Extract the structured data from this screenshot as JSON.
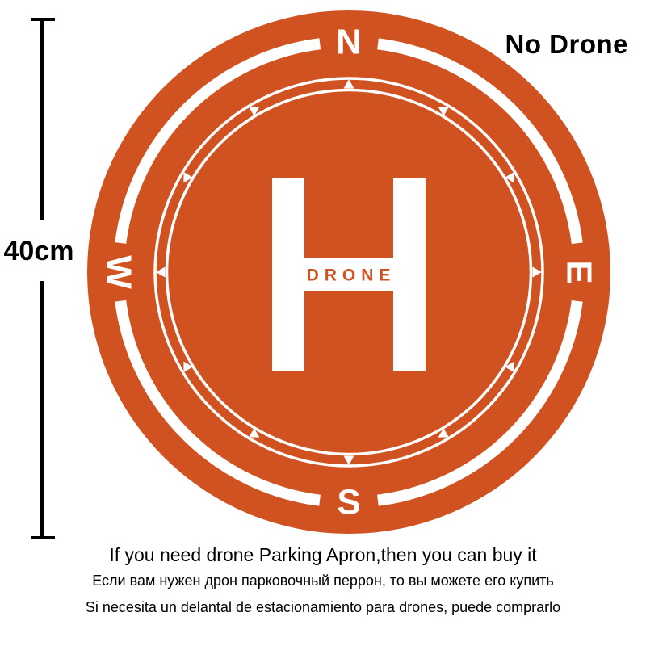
{
  "measurement": {
    "label": "40cm"
  },
  "badge": {
    "label": "No Drone"
  },
  "pad": {
    "compass": {
      "north": "N",
      "east": "E",
      "south": "S",
      "west": "W"
    },
    "helipad_letter": "H",
    "helipad_word": "DRONE",
    "colors": {
      "orange": "#D15221",
      "white": "#FFFFFF"
    },
    "icons": [
      "compass-tick-icon"
    ]
  },
  "captions": {
    "english": "If you need drone Parking Apron,then you can buy it",
    "russian": "Если вам нужен дрон парковочный перрон, то вы можете его купить",
    "spanish": "Si necesita un delantal de estacionamiento para drones, puede comprarlo"
  }
}
